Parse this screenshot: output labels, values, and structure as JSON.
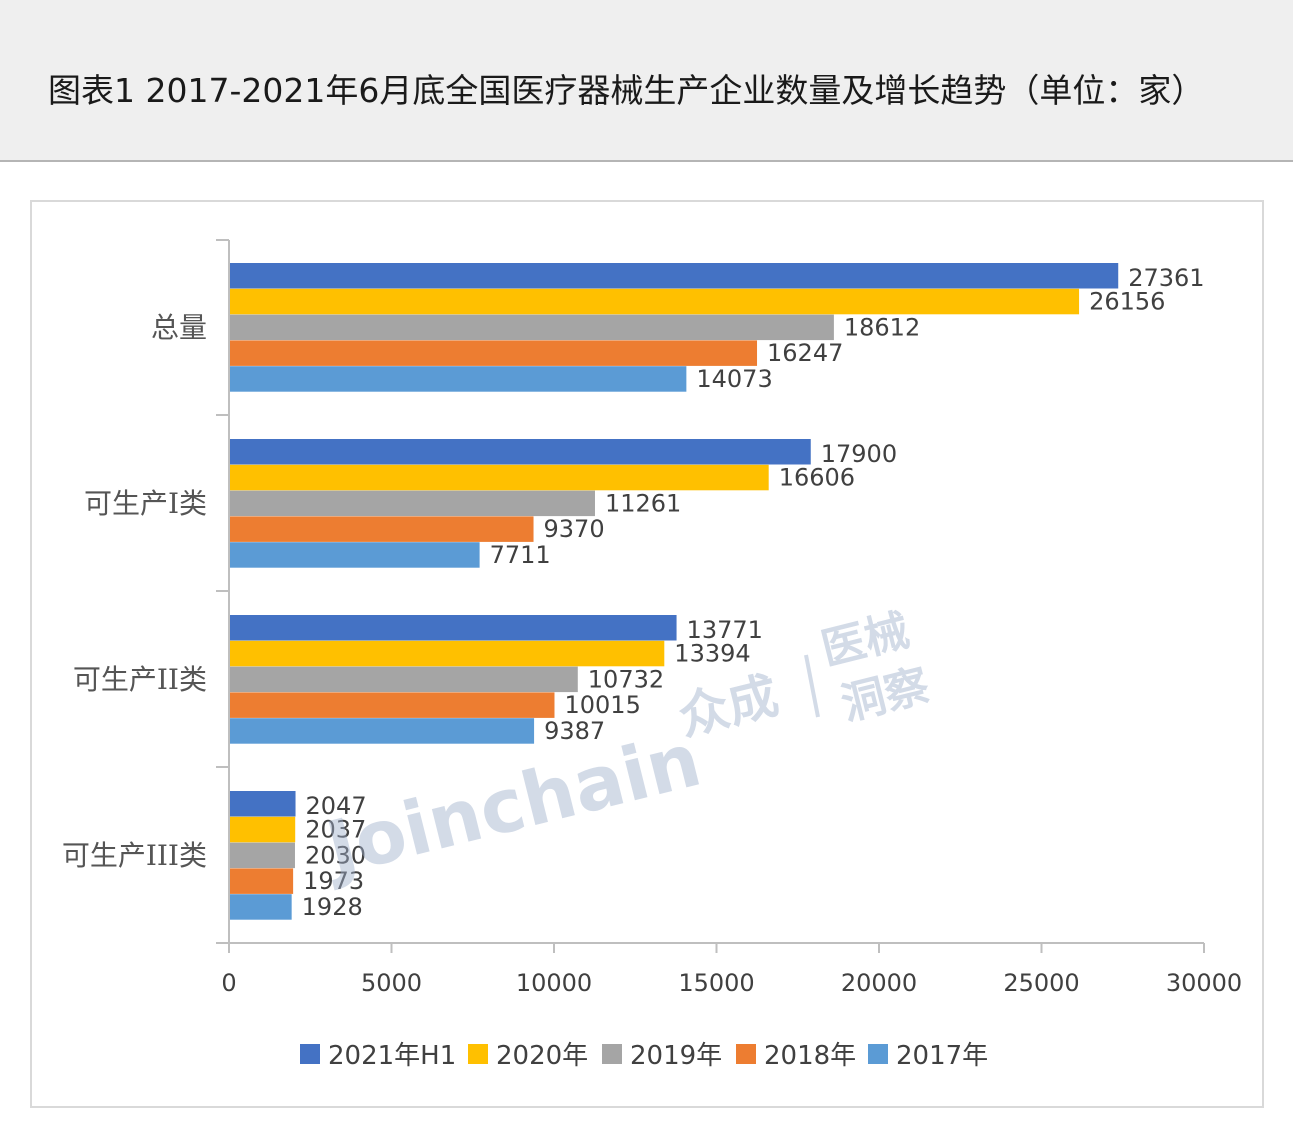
{
  "header": {
    "title": "图表1 2017-2021年6月底全国医疗器械生产企业数量及增长趋势（单位：家）"
  },
  "watermark": {
    "brand": "Joinchain",
    "cn_brand": "众成",
    "sub_brand_line1": "医械",
    "sub_brand_line2": "洞察"
  },
  "chart_data": {
    "type": "bar",
    "orientation": "horizontal",
    "title": "",
    "categories": [
      "总量",
      "可生产I类",
      "可生产II类",
      "可生产III类"
    ],
    "series": [
      {
        "name": "2021年H1",
        "color": "#4472c4",
        "values": [
          27361,
          17900,
          13771,
          2047
        ]
      },
      {
        "name": "2020年",
        "color": "#ffc000",
        "values": [
          26156,
          16606,
          13394,
          2037
        ]
      },
      {
        "name": "2019年",
        "color": "#a5a5a5",
        "values": [
          18612,
          11261,
          10732,
          2030
        ]
      },
      {
        "name": "2018年",
        "color": "#ed7d31",
        "values": [
          16247,
          9370,
          10015,
          1973
        ]
      },
      {
        "name": "2017年",
        "color": "#5b9bd5",
        "values": [
          14073,
          7711,
          9387,
          1928
        ]
      }
    ],
    "xlim": [
      0,
      30000
    ],
    "xticks": [
      "0",
      "5000",
      "10000",
      "15000",
      "20000",
      "25000",
      "30000"
    ],
    "grid": false,
    "legend": "bottom"
  }
}
